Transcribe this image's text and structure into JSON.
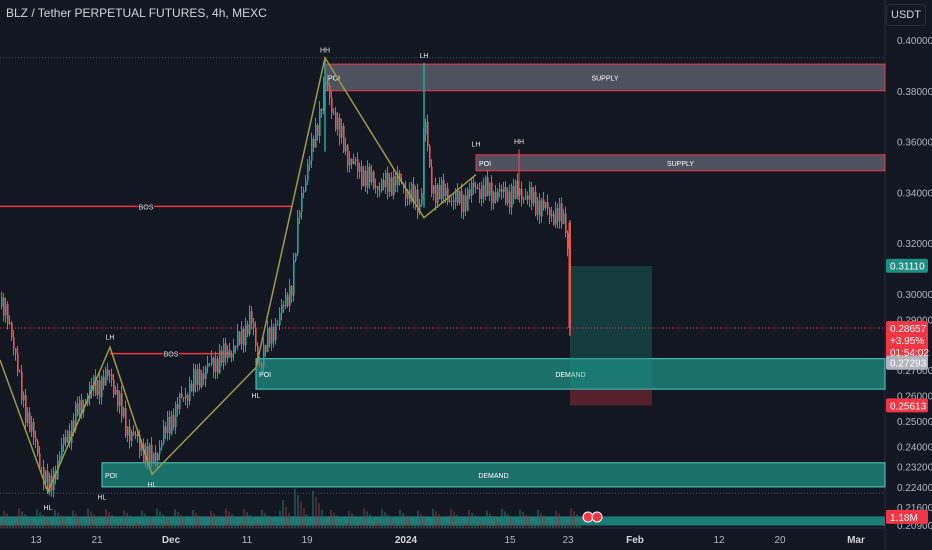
{
  "header": {
    "title": "BLZ / Tether PERPETUAL FUTURES, 4h, MEXC",
    "currency": "USDT"
  },
  "colors": {
    "background": "#131722",
    "up": "#26a69a",
    "down": "#ef5350",
    "supply_zone": "#8a8e99",
    "demand_zone": "#1f8f86",
    "zigzag": "#9a9a4a",
    "bos": "#f23645"
  },
  "chart_data": {
    "type": "candlestick",
    "ylim": [
      0.209,
      0.404
    ],
    "y_ticks": [
      "0.40000",
      "0.38000",
      "0.36000",
      "0.34000",
      "0.32000",
      "0.30000",
      "0.29000",
      "0.27000",
      "0.26000",
      "0.25000",
      "0.24000",
      "0.23200",
      "0.22400",
      "0.21600",
      "0.20900"
    ],
    "x_ticks": [
      "13",
      "21",
      "Dec",
      "11",
      "19",
      "2024",
      "15",
      "23",
      "Feb",
      "12",
      "20",
      "Mar"
    ],
    "x_ticks_bold": [
      "Dec",
      "2024",
      "Feb",
      "Mar"
    ],
    "price_path": [
      {
        "t": 0,
        "p": 0.295
      },
      {
        "t": 10,
        "p": 0.288
      },
      {
        "t": 20,
        "p": 0.262
      },
      {
        "t": 35,
        "p": 0.24
      },
      {
        "t": 48,
        "p": 0.222
      },
      {
        "t": 60,
        "p": 0.238
      },
      {
        "t": 75,
        "p": 0.252
      },
      {
        "t": 90,
        "p": 0.262
      },
      {
        "t": 110,
        "p": 0.268
      },
      {
        "t": 125,
        "p": 0.248
      },
      {
        "t": 140,
        "p": 0.24
      },
      {
        "t": 152,
        "p": 0.234
      },
      {
        "t": 165,
        "p": 0.246
      },
      {
        "t": 180,
        "p": 0.258
      },
      {
        "t": 195,
        "p": 0.266
      },
      {
        "t": 210,
        "p": 0.272
      },
      {
        "t": 225,
        "p": 0.276
      },
      {
        "t": 240,
        "p": 0.282
      },
      {
        "t": 250,
        "p": 0.291
      },
      {
        "t": 258,
        "p": 0.272
      },
      {
        "t": 268,
        "p": 0.282
      },
      {
        "t": 280,
        "p": 0.292
      },
      {
        "t": 292,
        "p": 0.305
      },
      {
        "t": 300,
        "p": 0.338
      },
      {
        "t": 312,
        "p": 0.358
      },
      {
        "t": 325,
        "p": 0.383
      },
      {
        "t": 338,
        "p": 0.364
      },
      {
        "t": 350,
        "p": 0.352
      },
      {
        "t": 365,
        "p": 0.346
      },
      {
        "t": 380,
        "p": 0.342
      },
      {
        "t": 395,
        "p": 0.345
      },
      {
        "t": 410,
        "p": 0.339
      },
      {
        "t": 420,
        "p": 0.334
      },
      {
        "t": 424,
        "p": 0.372
      },
      {
        "t": 430,
        "p": 0.342
      },
      {
        "t": 445,
        "p": 0.339
      },
      {
        "t": 460,
        "p": 0.336
      },
      {
        "t": 475,
        "p": 0.342
      },
      {
        "t": 490,
        "p": 0.34
      },
      {
        "t": 505,
        "p": 0.339
      },
      {
        "t": 520,
        "p": 0.34
      },
      {
        "t": 535,
        "p": 0.336
      },
      {
        "t": 550,
        "p": 0.332
      },
      {
        "t": 560,
        "p": 0.33
      },
      {
        "t": 566,
        "p": 0.328
      },
      {
        "t": 570,
        "p": 0.287
      }
    ],
    "price_tags": [
      {
        "label": "0.31110",
        "value": 0.3111,
        "color": "#1f8f86"
      },
      {
        "label": "0.28657",
        "value": 0.2866,
        "color": "#f23645",
        "lines": [
          "0.28657",
          "+3.95%",
          "01:54:02"
        ]
      },
      {
        "label": "0.27293",
        "value": 0.2729,
        "color": "#b2b5be"
      },
      {
        "label": "0.25613",
        "value": 0.2561,
        "color": "#f23645"
      },
      {
        "label": "1.18M",
        "value": 0.2122,
        "color": "#f23645"
      }
    ],
    "zones": [
      {
        "kind": "supply",
        "left_label": "POI",
        "center_label": "SUPPLY",
        "top": 0.3905,
        "bottom": 0.38,
        "x_start": 325
      },
      {
        "kind": "supply",
        "left_label": "POI",
        "center_label": "SUPPLY",
        "top": 0.3548,
        "bottom": 0.3485,
        "x_start": 476
      },
      {
        "kind": "demand",
        "left_label": "POI",
        "center_label": "DEMAND",
        "top": 0.2745,
        "bottom": 0.2625,
        "x_start": 256
      },
      {
        "kind": "demand",
        "left_label": "POI",
        "center_label": "DEMAND",
        "top": 0.2335,
        "bottom": 0.224,
        "x_start": 102
      }
    ],
    "bos": [
      {
        "label": "BOS",
        "value": 0.3345,
        "x_start": 0,
        "x_end": 292
      },
      {
        "label": "BOS",
        "value": 0.2765,
        "x_start": 110,
        "x_end": 232
      }
    ],
    "swing_labels": [
      {
        "label": "HH",
        "t": 325,
        "value": 0.395
      },
      {
        "label": "LH",
        "t": 424,
        "value": 0.393
      },
      {
        "label": "LH",
        "t": 476,
        "value": 0.358
      },
      {
        "label": "HH",
        "t": 519,
        "value": 0.359
      },
      {
        "label": "LH",
        "t": 110,
        "value": 0.282
      },
      {
        "label": "HL",
        "t": 256,
        "value": 0.259
      },
      {
        "label": "HL",
        "t": 152,
        "value": 0.224
      },
      {
        "label": "HL",
        "t": 48,
        "value": 0.215
      },
      {
        "label": "HL",
        "t": 102,
        "value": 0.219
      }
    ],
    "zigzag": [
      {
        "t": 0,
        "p": 0.274
      },
      {
        "t": 48,
        "p": 0.222
      },
      {
        "t": 110,
        "p": 0.279
      },
      {
        "t": 152,
        "p": 0.229
      },
      {
        "t": 256,
        "p": 0.271
      },
      {
        "t": 325,
        "p": 0.393
      },
      {
        "t": 424,
        "p": 0.33
      },
      {
        "t": 476,
        "p": 0.347
      }
    ],
    "position": {
      "entry": 0.2623,
      "target": 0.311,
      "stop": 0.2561,
      "t_start": 570,
      "t_end": 652
    }
  }
}
